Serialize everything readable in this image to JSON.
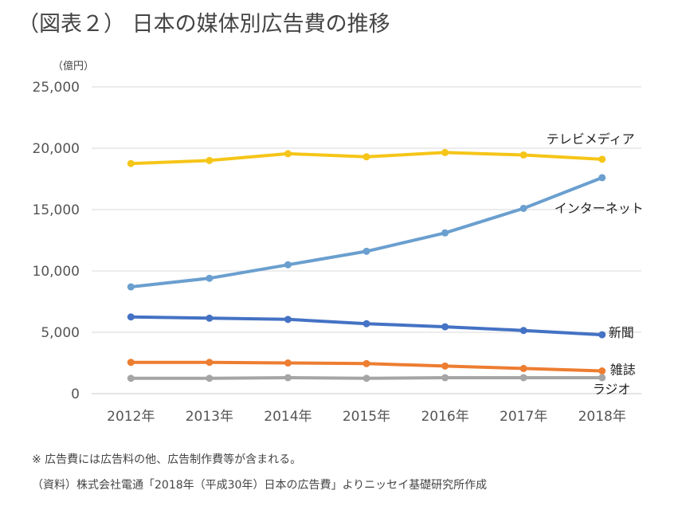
{
  "title": "（図表２） 日本の媒体別広告費の推移",
  "unit_label": "（億円）",
  "notes": {
    "note1": "※  広告費には広告料の他、広告制作費等が含まれる。",
    "source": "（資料）株式会社電通「2018年（平成30年）日本の広告費」よりニッセイ基礎研究所作成"
  },
  "chart_data": {
    "type": "line",
    "title": "（図表２） 日本の媒体別広告費の推移",
    "xlabel": "",
    "ylabel": "（億円）",
    "categories": [
      "2012年",
      "2013年",
      "2014年",
      "2015年",
      "2016年",
      "2017年",
      "2018年"
    ],
    "ylim": [
      0,
      25000
    ],
    "yticks": [
      0,
      5000,
      10000,
      15000,
      20000,
      25000
    ],
    "ytick_labels": [
      "0",
      "5,000",
      "10,000",
      "15,000",
      "20,000",
      "25,000"
    ],
    "grid": true,
    "legend": "labels at line ends",
    "series": [
      {
        "name": "テレビメディア",
        "color": "#F5C518",
        "values": [
          18750,
          19000,
          19550,
          19300,
          19650,
          19450,
          19100
        ]
      },
      {
        "name": "インターネット",
        "color": "#6A9FCF",
        "values": [
          8700,
          9400,
          10500,
          11600,
          13100,
          15100,
          17600
        ]
      },
      {
        "name": "新聞",
        "color": "#4472C4",
        "values": [
          6250,
          6150,
          6050,
          5700,
          5450,
          5150,
          4800
        ]
      },
      {
        "name": "雑誌",
        "color": "#ED7D31",
        "values": [
          2550,
          2550,
          2500,
          2450,
          2250,
          2050,
          1850
        ]
      },
      {
        "name": "ラジオ",
        "color": "#A5A5A5",
        "values": [
          1250,
          1250,
          1300,
          1250,
          1300,
          1300,
          1300
        ]
      }
    ]
  }
}
